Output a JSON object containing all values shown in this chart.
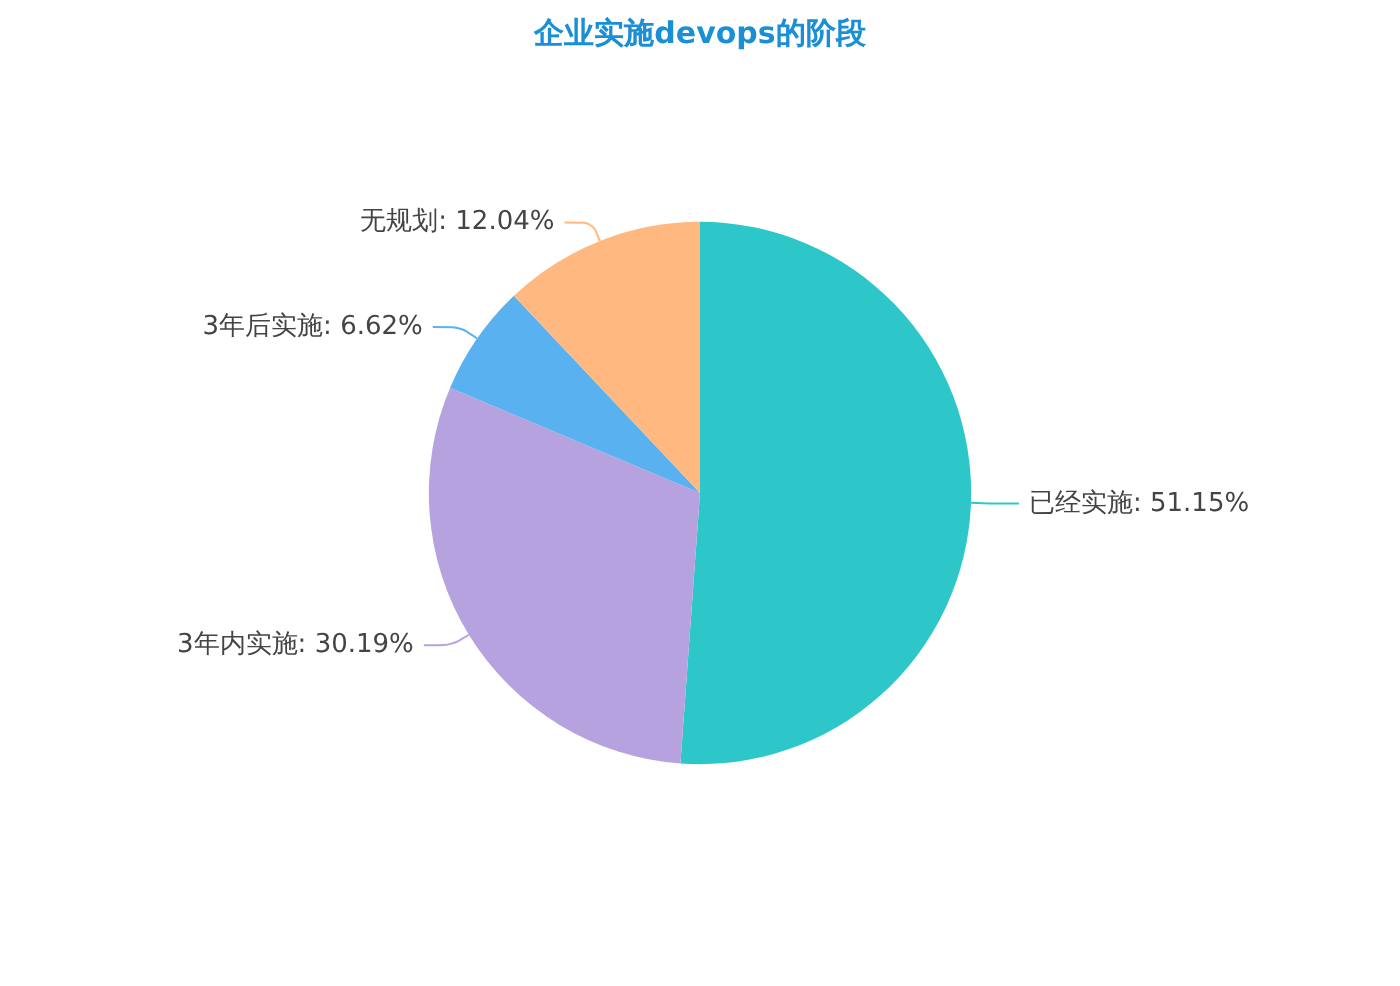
{
  "chart_data": {
    "type": "pie",
    "title": "企业实施devops的阶段",
    "categories": [
      "已经实施",
      "3年内实施",
      "3年后实施",
      "无规划"
    ],
    "values": [
      51.15,
      30.19,
      6.62,
      12.04
    ],
    "value_labels": [
      "51.15%",
      "30.19%",
      "6.62%",
      "12.04%"
    ],
    "colors": [
      "#2ec7c9",
      "#b6a2de",
      "#5ab1ef",
      "#ffb980"
    ]
  }
}
